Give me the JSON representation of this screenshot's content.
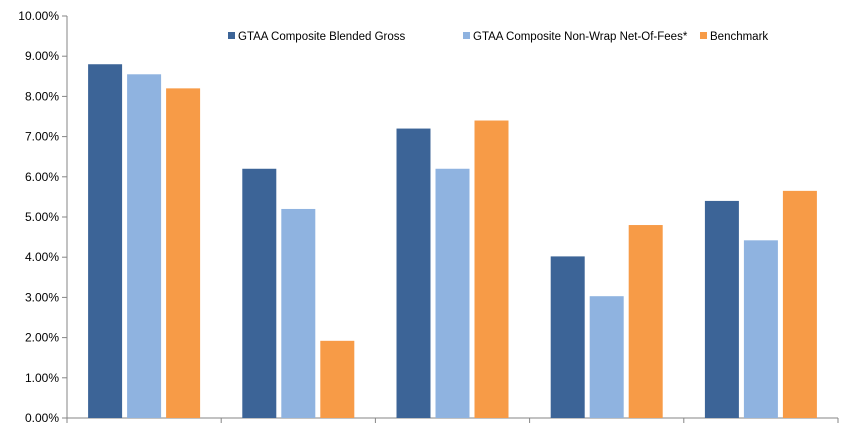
{
  "chart_data": {
    "type": "bar",
    "categories": [
      "",
      "",
      "",
      "",
      ""
    ],
    "series": [
      {
        "name": "GTAA Composite Blended Gross",
        "values": [
          8.8,
          6.2,
          7.2,
          4.02,
          5.4
        ],
        "color": "#3C6497"
      },
      {
        "name": "GTAA Composite Non-Wrap Net-Of-Fees*",
        "values": [
          8.55,
          5.2,
          6.2,
          3.03,
          4.42
        ],
        "color": "#8FB3E0"
      },
      {
        "name": "Benchmark",
        "values": [
          8.2,
          1.92,
          7.4,
          4.8,
          5.65
        ],
        "color": "#F79B47"
      }
    ],
    "ylim": [
      0,
      10
    ],
    "yticks": [
      "0.00%",
      "1.00%",
      "2.00%",
      "3.00%",
      "4.00%",
      "5.00%",
      "6.00%",
      "7.00%",
      "8.00%",
      "9.00%",
      "10.00%"
    ],
    "grid": false,
    "legend_position": "top"
  }
}
